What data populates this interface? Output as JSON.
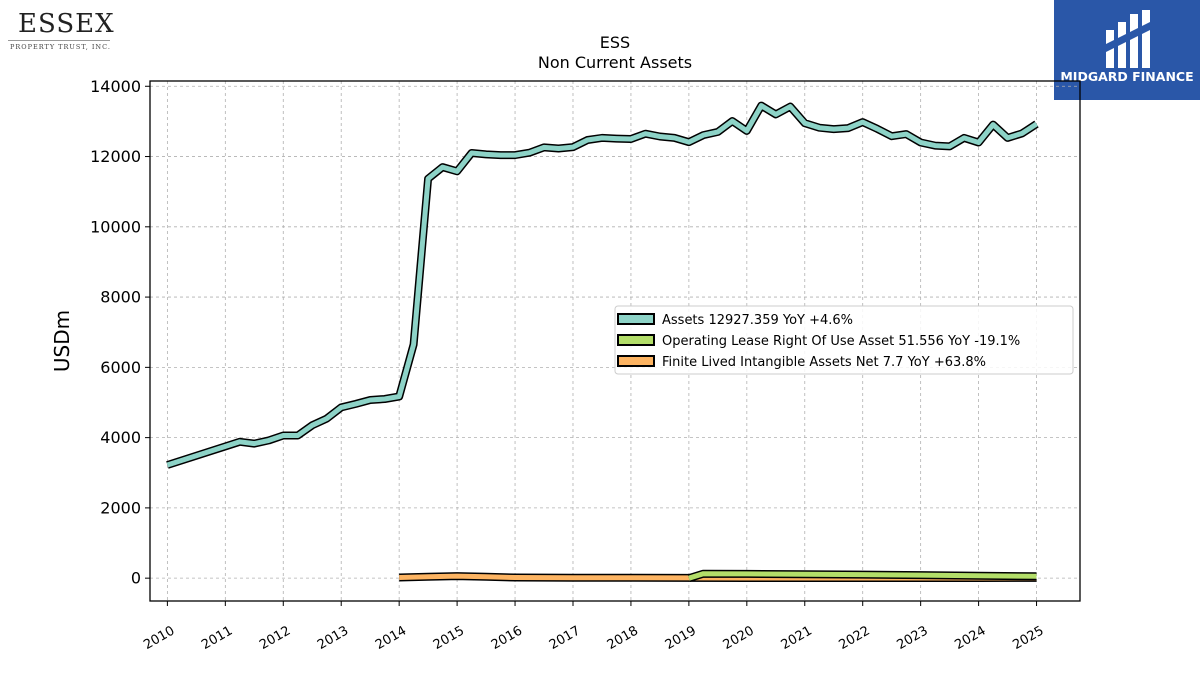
{
  "logos": {
    "left": {
      "brand": "ESSEX",
      "subtitle": "PROPERTY TRUST, INC."
    },
    "right": {
      "name": "MIDGARD FINANCE"
    }
  },
  "chart_data": {
    "type": "line",
    "title": "ESS",
    "subtitle": "Non Current  Assets",
    "xlabel": "",
    "ylabel": "USDm",
    "xlim": [
      2009.7,
      2025.75
    ],
    "ylim": [
      -650,
      14150
    ],
    "yticks": [
      0,
      2000,
      4000,
      6000,
      8000,
      10000,
      12000,
      14000
    ],
    "xticks": [
      "2010",
      "2011",
      "2012",
      "2013",
      "2014",
      "2015",
      "2016",
      "2017",
      "2018",
      "2019",
      "2020",
      "2021",
      "2022",
      "2023",
      "2024",
      "2025"
    ],
    "grid": true,
    "legend_position": "center-right",
    "series": [
      {
        "name": "Assets",
        "legend_label": "Assets  12927.359 YoY +4.6%",
        "color": "#8dd3c7",
        "x": [
          2010.0,
          2011.25,
          2011.5,
          2011.75,
          2012.0,
          2012.25,
          2012.5,
          2012.75,
          2013.0,
          2013.25,
          2013.5,
          2013.75,
          2014.0,
          2014.25,
          2014.5,
          2014.75,
          2015.0,
          2015.25,
          2015.5,
          2015.75,
          2016.0,
          2016.25,
          2016.5,
          2016.75,
          2017.0,
          2017.25,
          2017.5,
          2017.75,
          2018.0,
          2018.25,
          2018.5,
          2018.75,
          2019.0,
          2019.25,
          2019.5,
          2019.75,
          2020.0,
          2020.25,
          2020.5,
          2020.75,
          2021.0,
          2021.25,
          2021.5,
          2021.75,
          2022.0,
          2022.25,
          2022.5,
          2022.75,
          2023.0,
          2023.25,
          2023.5,
          2023.75,
          2024.0,
          2024.25,
          2024.5,
          2024.75,
          2025.0
        ],
        "y": [
          3220,
          3880,
          3830,
          3920,
          4060,
          4060,
          4350,
          4540,
          4860,
          4960,
          5070,
          5100,
          5170,
          6650,
          11370,
          11700,
          11580,
          12100,
          12060,
          12040,
          12040,
          12110,
          12260,
          12230,
          12270,
          12470,
          12530,
          12510,
          12500,
          12650,
          12570,
          12530,
          12410,
          12610,
          12700,
          13010,
          12730,
          13450,
          13200,
          13420,
          12950,
          12820,
          12780,
          12810,
          12980,
          12790,
          12580,
          12640,
          12400,
          12310,
          12290,
          12530,
          12400,
          12910,
          12530,
          12660,
          12927
        ]
      },
      {
        "name": "Operating Lease Right Of Use Asset",
        "legend_label": "Operating Lease Right Of Use Asset  51.556 YoY -19.1%",
        "color": "#b3de69",
        "x": [
          2019.0,
          2019.25,
          2020.0,
          2021.0,
          2022.0,
          2023.0,
          2024.0,
          2025.0
        ],
        "y": [
          0,
          128,
          120,
          112,
          100,
          88,
          70,
          52
        ]
      },
      {
        "name": "Finite Lived Intangible Assets Net",
        "legend_label": "Finite Lived Intangible Assets Net  7.7 YoY +63.8%",
        "color": "#fdb462",
        "x": [
          2014.0,
          2014.5,
          2015.0,
          2015.5,
          2016.0,
          2017.0,
          2018.0,
          2019.0,
          2020.0,
          2021.0,
          2022.0,
          2023.0,
          2024.0,
          2025.0
        ],
        "y": [
          20,
          40,
          60,
          40,
          20,
          12,
          10,
          8,
          6,
          5,
          5,
          5,
          5,
          8
        ]
      }
    ]
  }
}
